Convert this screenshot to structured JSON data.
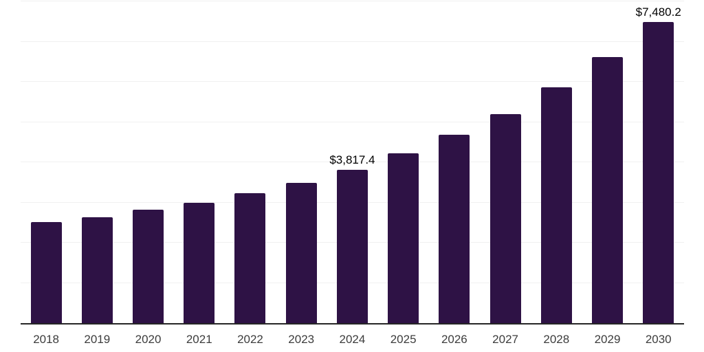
{
  "chart_data": {
    "type": "bar",
    "title": "",
    "xlabel": "",
    "ylabel": "",
    "categories": [
      "2018",
      "2019",
      "2020",
      "2021",
      "2022",
      "2023",
      "2024",
      "2025",
      "2026",
      "2027",
      "2028",
      "2029",
      "2030"
    ],
    "values": [
      2510,
      2625,
      2815,
      3000,
      3225,
      3495,
      3817.4,
      4215,
      4690,
      5200,
      5870,
      6620,
      7480.2
    ],
    "data_labels": {
      "2024": "$3,817.4",
      "2030": "$7,480.2"
    },
    "ylim": [
      0,
      8000
    ],
    "gridline_step": 1000,
    "grid": "horizontal-only",
    "legend": "none",
    "y_tick_labels_visible": false,
    "colors": {
      "bar": "#2e1245",
      "axis_line": "#262626",
      "gridline": "#f0f0f0",
      "data_label": "#000000",
      "tick_label": "#3c3c3c",
      "background": "#ffffff"
    }
  }
}
